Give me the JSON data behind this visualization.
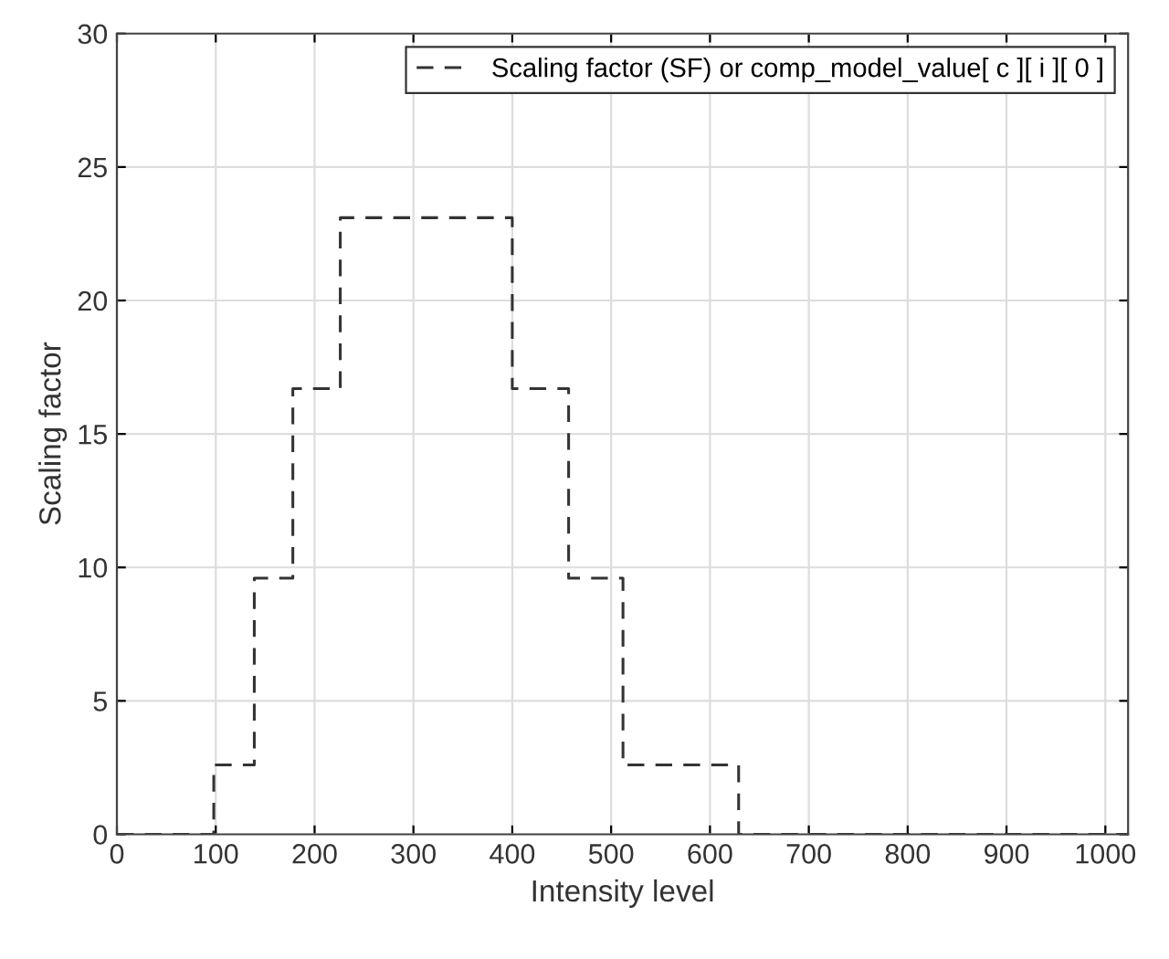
{
  "chart_data": {
    "type": "step",
    "xlabel": "Intensity level",
    "ylabel": "Scaling factor",
    "x": [
      0,
      98,
      139,
      178,
      226,
      400,
      457,
      512,
      629,
      1023
    ],
    "series": [
      {
        "name": "Scaling factor (SF) or comp_model_value[ c ][ i ][ 0 ]",
        "color": "#333333",
        "values": [
          0,
          2.6,
          9.6,
          16.7,
          23.1,
          16.7,
          9.6,
          2.6,
          0,
          0
        ]
      }
    ],
    "xlim": [
      0,
      1023
    ],
    "ylim": [
      0,
      30
    ],
    "xticks": [
      0,
      100,
      200,
      300,
      400,
      500,
      600,
      700,
      800,
      900,
      1000
    ],
    "yticks": [
      0,
      5,
      10,
      15,
      20,
      25,
      30
    ],
    "grid": true,
    "legend": "top right",
    "line_style": "dashed"
  }
}
